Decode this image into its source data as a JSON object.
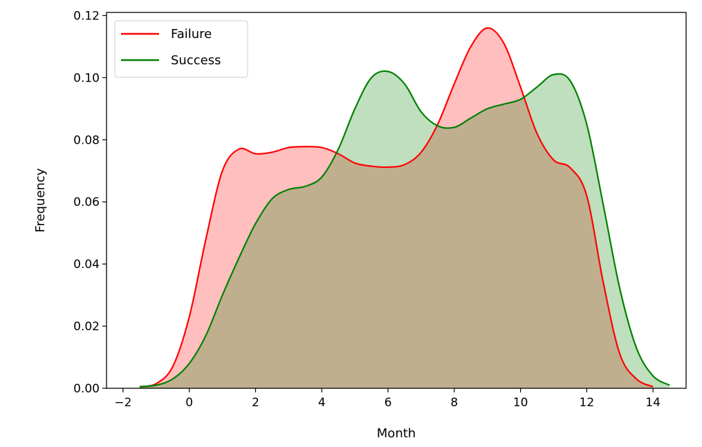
{
  "chart_data": {
    "type": "area",
    "title": "",
    "xlabel": "Month",
    "ylabel": "Frequency",
    "xlim": [
      -2.5,
      15
    ],
    "ylim": [
      0,
      0.121
    ],
    "xticks": [
      -2,
      0,
      2,
      4,
      6,
      8,
      10,
      12,
      14
    ],
    "xtick_labels": [
      "−2",
      "0",
      "2",
      "4",
      "6",
      "8",
      "10",
      "12",
      "14"
    ],
    "yticks": [
      0,
      0.02,
      0.04,
      0.06,
      0.08,
      0.1,
      0.12
    ],
    "ytick_labels": [
      "0.00",
      "0.02",
      "0.04",
      "0.06",
      "0.08",
      "0.10",
      "0.12"
    ],
    "grid": false,
    "legend": "top-left",
    "series": [
      {
        "name": "Failure",
        "color": "#ff0000",
        "fill_opacity": 0.25,
        "x": [
          -1.5,
          -1,
          -0.5,
          0,
          0.5,
          1,
          1.5,
          2,
          2.5,
          3,
          3.5,
          4,
          4.5,
          5,
          5.5,
          6,
          6.5,
          7,
          7.5,
          8,
          8.5,
          9,
          9.5,
          10,
          10.5,
          11,
          11.5,
          12,
          12.5,
          13,
          13.5,
          14
        ],
        "y": [
          0.0005,
          0.0015,
          0.007,
          0.023,
          0.048,
          0.07,
          0.077,
          0.0755,
          0.076,
          0.0775,
          0.0778,
          0.0775,
          0.0755,
          0.0725,
          0.0715,
          0.0712,
          0.072,
          0.076,
          0.085,
          0.098,
          0.11,
          0.116,
          0.111,
          0.097,
          0.082,
          0.0735,
          0.071,
          0.062,
          0.034,
          0.011,
          0.003,
          0.0005
        ]
      },
      {
        "name": "Success",
        "color": "#008000",
        "fill_opacity": 0.25,
        "x": [
          -1.5,
          -1,
          -0.5,
          0,
          0.5,
          1,
          1.5,
          2,
          2.5,
          3,
          3.5,
          4,
          4.5,
          5,
          5.5,
          6,
          6.5,
          7,
          7.5,
          8,
          8.5,
          9,
          9.5,
          10,
          10.5,
          11,
          11.5,
          12,
          12.5,
          13,
          13.5,
          14,
          14.5
        ],
        "y": [
          0.0005,
          0.001,
          0.003,
          0.008,
          0.017,
          0.03,
          0.042,
          0.053,
          0.061,
          0.064,
          0.065,
          0.068,
          0.077,
          0.09,
          0.1,
          0.102,
          0.098,
          0.089,
          0.0845,
          0.084,
          0.087,
          0.09,
          0.0915,
          0.093,
          0.097,
          0.101,
          0.099,
          0.085,
          0.059,
          0.032,
          0.013,
          0.004,
          0.001
        ]
      }
    ]
  }
}
